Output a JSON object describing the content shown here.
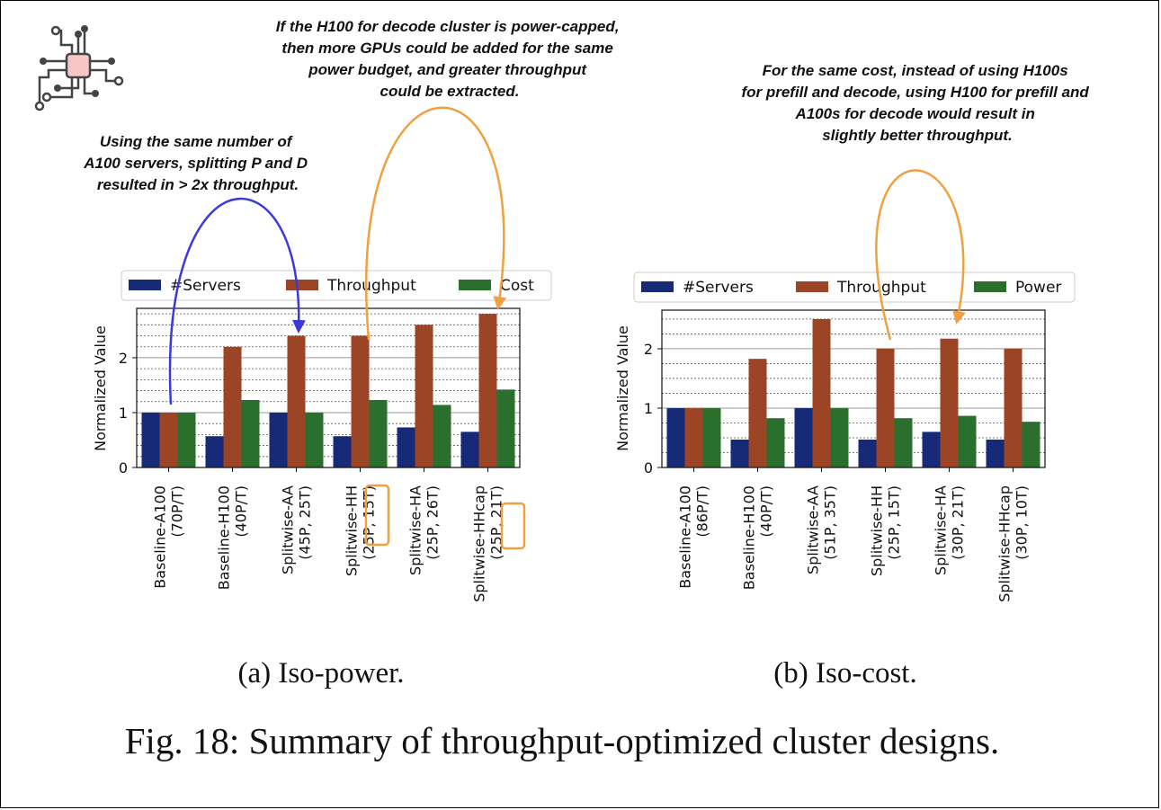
{
  "figure": {
    "caption": "Fig. 18: Summary of throughput-optimized cluster designs.",
    "colors": {
      "servers": "#172a78",
      "throughput": "#9b4526",
      "third": "#2a6f2e",
      "arrow_blue": "#3a3ad8",
      "arrow_orange": "#f0a040"
    }
  },
  "logo": {
    "icon": "circuit-chip-icon"
  },
  "annotations": {
    "left": [
      "Using the same number of",
      "A100 servers, splitting P and D",
      "resulted in > 2x throughput."
    ],
    "middle": [
      "If the H100 for decode cluster is power-capped,",
      "then more GPUs could be added for the same",
      "power budget, and greater throughput",
      "could be extracted."
    ],
    "right": [
      "For the same cost, instead of using H100s",
      "for prefill and decode, using H100 for prefill and",
      "A100s for decode would result in",
      "slightly better throughput."
    ]
  },
  "chart_data": [
    {
      "type": "bar",
      "subcaption": "(a) Iso-power.",
      "ylabel": "Normalized Value",
      "ylim": [
        0,
        2.9
      ],
      "yticks": [
        "0",
        "1",
        "2"
      ],
      "legend_position": "top",
      "categories": [
        [
          "Baseline-A100",
          "(70P/T)"
        ],
        [
          "Baseline-H100",
          "(40P/T)"
        ],
        [
          "Splitwise-AA",
          "(45P, 25T)"
        ],
        [
          "Splitwise-HH",
          "(25P, 15T)"
        ],
        [
          "Splitwise-HA",
          "(25P, 26T)"
        ],
        [
          "Splitwise-HHcap",
          "(25P, 21T)"
        ]
      ],
      "series": [
        {
          "name": "#Servers",
          "values": [
            1.0,
            0.57,
            1.0,
            0.57,
            0.73,
            0.65
          ]
        },
        {
          "name": "Throughput",
          "values": [
            1.0,
            2.2,
            2.4,
            2.4,
            2.6,
            2.8
          ]
        },
        {
          "name": "Cost",
          "values": [
            1.0,
            1.23,
            1.0,
            1.23,
            1.14,
            1.42
          ]
        }
      ]
    },
    {
      "type": "bar",
      "subcaption": "(b) Iso-cost.",
      "ylabel": "Normalized Value",
      "ylim": [
        0,
        2.65
      ],
      "yticks": [
        "0",
        "1",
        "2"
      ],
      "legend_position": "top",
      "categories": [
        [
          "Baseline-A100",
          "(86P/T)"
        ],
        [
          "Baseline-H100",
          "(40P/T)"
        ],
        [
          "Splitwise-AA",
          "(51P, 35T)"
        ],
        [
          "Splitwise-HH",
          "(25P, 15T)"
        ],
        [
          "Splitwise-HA",
          "(30P, 21T)"
        ],
        [
          "Splitwise-HHcap",
          "(30P, 10T)"
        ]
      ],
      "series": [
        {
          "name": "#Servers",
          "values": [
            1.0,
            0.47,
            1.0,
            0.47,
            0.6,
            0.47
          ]
        },
        {
          "name": "Throughput",
          "values": [
            1.0,
            1.83,
            2.5,
            2.0,
            2.17,
            2.0
          ]
        },
        {
          "name": "Power",
          "values": [
            1.0,
            0.83,
            1.0,
            0.83,
            0.87,
            0.77
          ]
        }
      ]
    }
  ]
}
